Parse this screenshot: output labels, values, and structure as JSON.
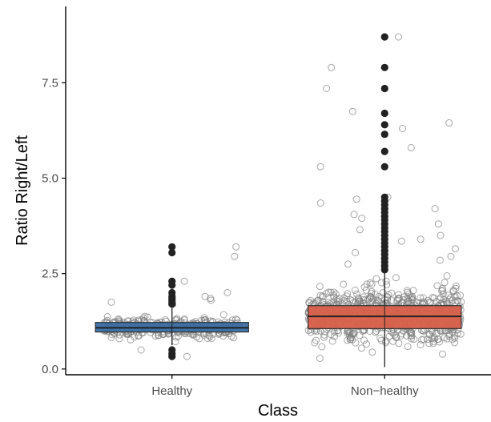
{
  "chart_data": {
    "type": "boxplot",
    "xlabel": "Class",
    "ylabel": "Ratio Right/Left",
    "categories": [
      "Healthy",
      "Non−healthy"
    ],
    "y_ticks": [
      0.0,
      2.5,
      5.0,
      7.5
    ],
    "y_tick_labels": [
      "0.0",
      "2.5",
      "5.0",
      "7.5"
    ],
    "ylim": [
      -0.15,
      9.5
    ],
    "grid": false,
    "legend": "none",
    "colors": {
      "Healthy": "#3a6ea5",
      "Non−healthy": "#d9604a",
      "outlier": "#222222",
      "jitter": "#808080"
    },
    "boxes": [
      {
        "category": "Healthy",
        "q1": 0.97,
        "median": 1.08,
        "q3": 1.22,
        "whisker_low": 0.62,
        "whisker_high": 1.6,
        "outliers": [
          3.2,
          3.05,
          2.3,
          2.2,
          2.0,
          1.9,
          1.85,
          1.8,
          1.75,
          1.7,
          0.5,
          0.4,
          0.33
        ]
      },
      {
        "category": "Non−healthy",
        "q1": 1.06,
        "median": 1.38,
        "q3": 1.66,
        "whisker_low": 0.05,
        "whisker_high": 2.55,
        "outliers": [
          8.7,
          7.9,
          7.35,
          6.7,
          6.4,
          6.15,
          5.7,
          5.3,
          4.5,
          4.4,
          4.3,
          4.2,
          4.1,
          4.0,
          3.9,
          3.8,
          3.7,
          3.6,
          3.5,
          3.4,
          3.3,
          3.2,
          3.1,
          3.0,
          2.9,
          2.8,
          2.7,
          2.6
        ]
      }
    ],
    "jitter": {
      "Healthy": {
        "count": 300,
        "x_spread": 0.32,
        "points": [
          3.2,
          2.95,
          2.3,
          2.0,
          1.9,
          1.85,
          1.8,
          1.75,
          1.7,
          0.5,
          0.33
        ]
      },
      "Non−healthy": {
        "count": 800,
        "x_spread": 0.36,
        "points": [
          8.7,
          7.9,
          7.35,
          6.75,
          6.45,
          6.3,
          5.8,
          5.3,
          4.5,
          4.45,
          4.35,
          4.2,
          4.05,
          3.95,
          3.8,
          3.65,
          3.5,
          3.4,
          3.35,
          3.15,
          3.05,
          2.95,
          2.85,
          2.75
        ]
      }
    }
  }
}
